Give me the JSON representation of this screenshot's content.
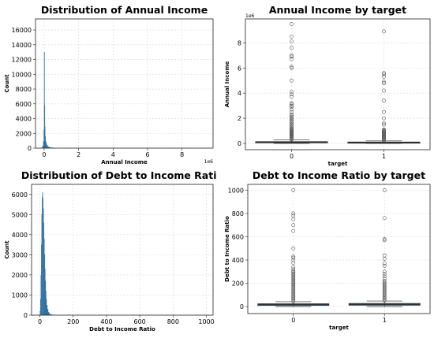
{
  "colors": {
    "bar": "#2f6f9f",
    "box_fill": "#3a76a8",
    "box_edge": "#2b2b2b",
    "flier": "#555555"
  },
  "chart_data": [
    {
      "type": "bar",
      "title": "Distribution of Annual Income",
      "xlabel": "Annual Income",
      "ylabel": "Count",
      "x_offset_label": "1e6",
      "xlim": [
        -0.5,
        9.8
      ],
      "ylim": [
        0,
        17500
      ],
      "xticks": [
        0,
        2,
        4,
        6,
        8
      ],
      "yticks": [
        0,
        2000,
        4000,
        6000,
        8000,
        10000,
        12000,
        14000,
        16000
      ],
      "grid": true,
      "bins_x": [
        -0.15,
        -0.1,
        -0.05,
        -0.02,
        0.0,
        0.02,
        0.04,
        0.06,
        0.08,
        0.1,
        0.12,
        0.15,
        0.2,
        0.25,
        0.3,
        0.4,
        0.5
      ],
      "values": [
        40,
        300,
        900,
        2500,
        13000,
        5800,
        2900,
        1600,
        1000,
        800,
        600,
        400,
        250,
        150,
        100,
        60,
        30
      ]
    },
    {
      "type": "box",
      "title": "Annual Income by target",
      "xlabel": "target",
      "ylabel": "Annual Income",
      "y_offset_label": "1e6",
      "categories": [
        "0",
        "1"
      ],
      "ylim": [
        -0.5,
        9.9
      ],
      "yticks": [
        0,
        2,
        4,
        6,
        8
      ],
      "grid": true,
      "boxes": [
        {
          "q1": 0.05,
          "median": 0.09,
          "q3": 0.14,
          "whisker_low": 0,
          "whisker_high": 0.27
        },
        {
          "q1": 0.04,
          "median": 0.07,
          "q3": 0.11,
          "whisker_low": 0,
          "whisker_high": 0.2
        }
      ],
      "outliers": [
        [
          0.3,
          0.35,
          0.4,
          0.45,
          0.5,
          0.55,
          0.6,
          0.65,
          0.7,
          0.75,
          0.8,
          0.85,
          0.9,
          0.95,
          1.0,
          1.05,
          1.1,
          1.15,
          1.2,
          1.3,
          1.4,
          1.5,
          1.6,
          1.7,
          1.8,
          1.9,
          2.0,
          2.1,
          2.2,
          2.3,
          2.5,
          2.7,
          2.9,
          3.0,
          3.1,
          3.2,
          3.7,
          3.9,
          4.1,
          5.0,
          6.0,
          6.1,
          6.7,
          6.9,
          7.0,
          7.6,
          8.1,
          8.5,
          9.5
        ],
        [
          0.25,
          0.3,
          0.35,
          0.4,
          0.45,
          0.5,
          0.55,
          0.6,
          0.65,
          0.7,
          0.75,
          0.8,
          0.85,
          0.9,
          0.95,
          1.0,
          1.05,
          1.1,
          1.5,
          1.6,
          2.0,
          2.5,
          3.4,
          4.2,
          4.8,
          4.9,
          5.3,
          5.5,
          5.6,
          8.9
        ]
      ]
    },
    {
      "type": "bar",
      "title": "Distribution of Debt to Income Ratio",
      "xlabel": "Debt to Income Ratio",
      "ylabel": "Count",
      "xlim": [
        -50,
        1040
      ],
      "ylim": [
        0,
        6500
      ],
      "xticks": [
        0,
        200,
        400,
        600,
        800,
        1000
      ],
      "yticks": [
        0,
        1000,
        2000,
        3000,
        4000,
        5000,
        6000
      ],
      "grid": true,
      "bins_x": [
        0,
        2.5,
        5,
        7.5,
        10,
        12.5,
        15,
        17.5,
        20,
        22.5,
        25,
        27.5,
        30,
        32.5,
        35,
        37.5,
        40,
        45,
        50,
        55,
        60,
        70,
        80
      ],
      "values": [
        200,
        800,
        2000,
        3500,
        5000,
        5900,
        6100,
        5800,
        5300,
        4600,
        3800,
        3000,
        2300,
        1700,
        1200,
        800,
        500,
        300,
        150,
        80,
        40,
        20,
        10
      ]
    },
    {
      "type": "box",
      "title": "Debt to Income Ratio by target",
      "xlabel": "target",
      "ylabel": "Debt to Income Ratio",
      "categories": [
        "0",
        "1"
      ],
      "ylim": [
        -60,
        1050
      ],
      "yticks": [
        0,
        200,
        400,
        600,
        800,
        1000
      ],
      "grid": true,
      "boxes": [
        {
          "q1": 10,
          "median": 17,
          "q3": 24,
          "whisker_low": 0,
          "whisker_high": 42
        },
        {
          "q1": 12,
          "median": 19,
          "q3": 27,
          "whisker_low": 0,
          "whisker_high": 48
        }
      ],
      "outliers": [
        [
          45,
          55,
          65,
          75,
          85,
          95,
          105,
          115,
          125,
          135,
          145,
          155,
          165,
          175,
          185,
          195,
          205,
          215,
          225,
          235,
          245,
          255,
          265,
          275,
          285,
          295,
          305,
          320,
          340,
          375,
          400,
          420,
          430,
          500,
          650,
          700,
          750,
          780,
          800,
          1000
        ],
        [
          52,
          60,
          70,
          80,
          90,
          100,
          110,
          120,
          130,
          140,
          150,
          160,
          170,
          180,
          190,
          200,
          210,
          220,
          240,
          260,
          280,
          300,
          350,
          370,
          410,
          440,
          570,
          580,
          760,
          1000
        ]
      ]
    }
  ]
}
